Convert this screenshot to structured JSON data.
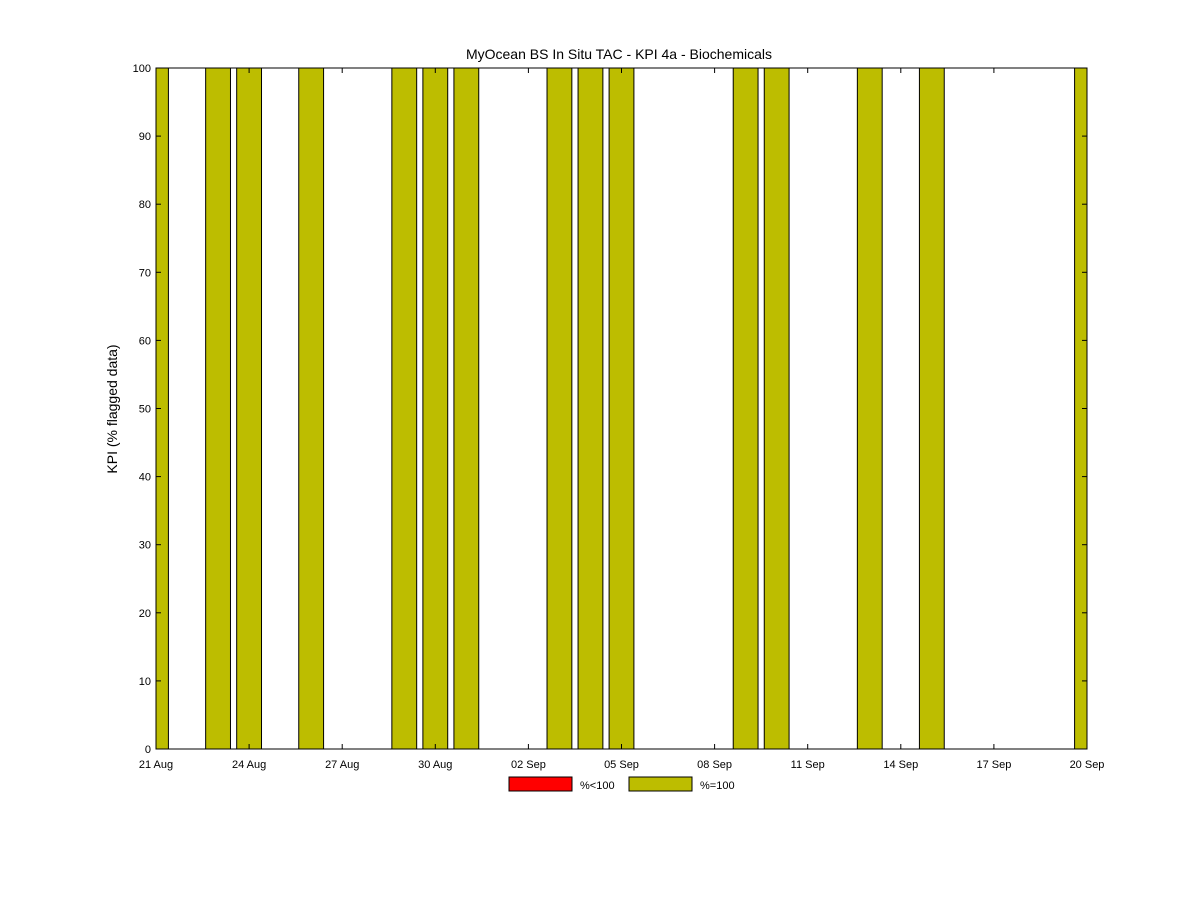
{
  "chart_data": {
    "type": "bar",
    "title": "MyOcean  BS In Situ TAC - KPI 4a - Biochemicals",
    "ylabel": "KPI (% flagged data)",
    "xlabel": "",
    "ylim": [
      0,
      100
    ],
    "yticks": [
      0,
      10,
      20,
      30,
      40,
      50,
      60,
      70,
      80,
      90,
      100
    ],
    "x_range": [
      "2012-08-21",
      "2012-09-20"
    ],
    "xticks": [
      {
        "date": "2012-08-21",
        "label": "21 Aug"
      },
      {
        "date": "2012-08-24",
        "label": "24 Aug"
      },
      {
        "date": "2012-08-27",
        "label": "27 Aug"
      },
      {
        "date": "2012-08-30",
        "label": "30 Aug"
      },
      {
        "date": "2012-09-02",
        "label": "02 Sep"
      },
      {
        "date": "2012-09-05",
        "label": "05 Sep"
      },
      {
        "date": "2012-09-08",
        "label": "08 Sep"
      },
      {
        "date": "2012-09-11",
        "label": "11 Sep"
      },
      {
        "date": "2012-09-14",
        "label": "14 Sep"
      },
      {
        "date": "2012-09-17",
        "label": "17 Sep"
      },
      {
        "date": "2012-09-20",
        "label": "20 Sep"
      }
    ],
    "grid": false,
    "legend_position": "bottom-center",
    "series": [
      {
        "name": "%<100",
        "color": "#ff0000",
        "points": []
      },
      {
        "name": "%=100",
        "color": "#bdbd00",
        "points": [
          {
            "date": "2012-08-21",
            "value": 100
          },
          {
            "date": "2012-08-23",
            "value": 100
          },
          {
            "date": "2012-08-24",
            "value": 100
          },
          {
            "date": "2012-08-26",
            "value": 100
          },
          {
            "date": "2012-08-29",
            "value": 100
          },
          {
            "date": "2012-08-30",
            "value": 100
          },
          {
            "date": "2012-08-31",
            "value": 100
          },
          {
            "date": "2012-09-03",
            "value": 100
          },
          {
            "date": "2012-09-04",
            "value": 100
          },
          {
            "date": "2012-09-05",
            "value": 100
          },
          {
            "date": "2012-09-09",
            "value": 100
          },
          {
            "date": "2012-09-10",
            "value": 100
          },
          {
            "date": "2012-09-13",
            "value": 100
          },
          {
            "date": "2012-09-15",
            "value": 100
          },
          {
            "date": "2012-09-20",
            "value": 100
          }
        ]
      }
    ]
  }
}
